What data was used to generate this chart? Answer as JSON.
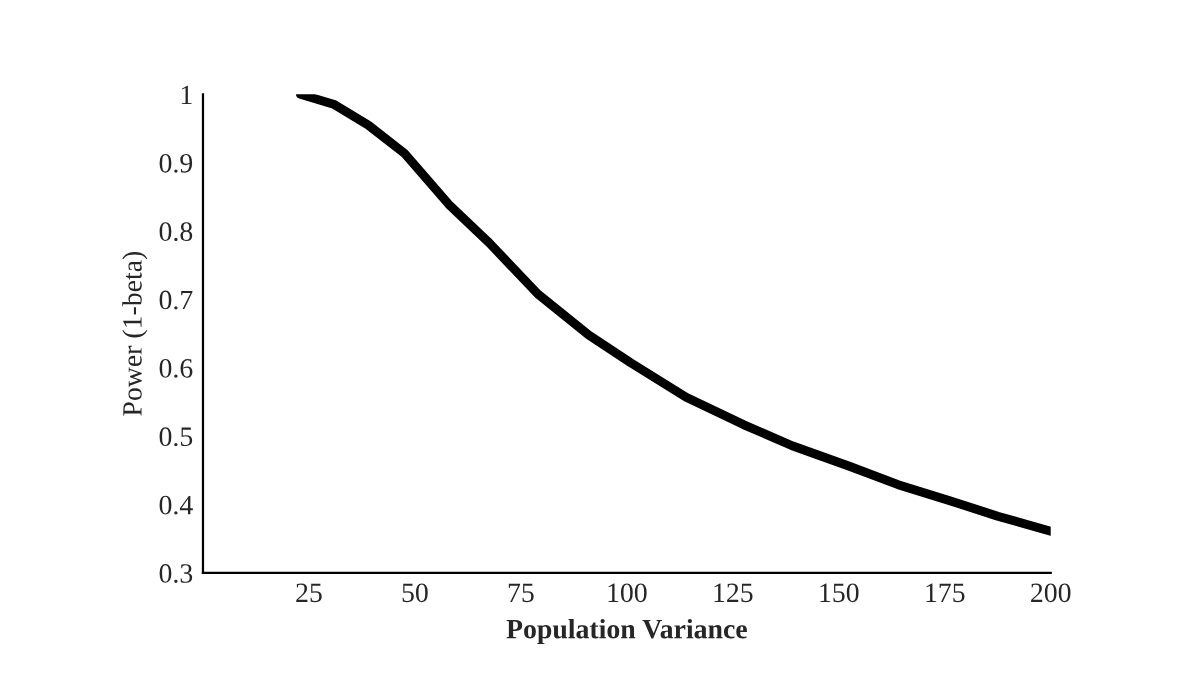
{
  "chart_data": {
    "type": "line",
    "xlabel": "Population Variance",
    "ylabel": "Power (1-beta)",
    "x": [
      23,
      31,
      39,
      47.5,
      58,
      67.5,
      79,
      91,
      101,
      114,
      127.5,
      139,
      152.5,
      164,
      176,
      187.5,
      200
    ],
    "series": [
      {
        "color": "#000000",
        "values": [
          1.0,
          0.985,
          0.955,
          0.914,
          0.839,
          0.783,
          0.708,
          0.648,
          0.607,
          0.557,
          0.517,
          0.486,
          0.456,
          0.429,
          0.406,
          0.383,
          0.361
        ]
      }
    ],
    "xlim": [
      0,
      200
    ],
    "ylim": [
      0.3,
      1
    ],
    "xticks": [
      25,
      50,
      75,
      100,
      125,
      150,
      175,
      200
    ],
    "yticks": [
      0.3,
      0.4,
      0.5,
      0.6,
      0.7,
      0.8,
      0.9,
      1
    ],
    "grid": false,
    "legend": false,
    "marker": "none",
    "line_style": "solid"
  }
}
